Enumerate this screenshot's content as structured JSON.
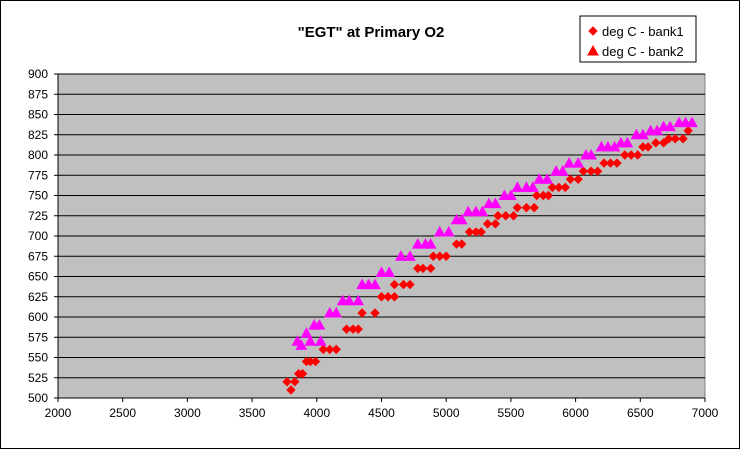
{
  "chart_data": {
    "type": "scatter",
    "title": "\"EGT\" at Primary O2",
    "xlabel": "",
    "ylabel": "",
    "xlim": [
      2000,
      7000
    ],
    "ylim": [
      500,
      900
    ],
    "x_ticks": [
      "2000",
      "2500",
      "3000",
      "3500",
      "4000",
      "4500",
      "5000",
      "5500",
      "6000",
      "6500",
      "7000"
    ],
    "y_ticks": [
      "500",
      "525",
      "550",
      "575",
      "600",
      "625",
      "650",
      "675",
      "700",
      "725",
      "750",
      "775",
      "800",
      "825",
      "850",
      "875",
      "900"
    ],
    "grid": true,
    "plot_background": "#C0C0C0",
    "legend": {
      "placement": "top-right",
      "entries": [
        "deg C - bank1",
        "deg C - bank2"
      ]
    },
    "series": [
      {
        "name": "deg C - bank1",
        "marker": "diamond",
        "color": "#FF0000",
        "points": [
          [
            3770,
            520
          ],
          [
            3800,
            510
          ],
          [
            3830,
            520
          ],
          [
            3860,
            530
          ],
          [
            3890,
            530
          ],
          [
            3920,
            545
          ],
          [
            3950,
            545
          ],
          [
            3990,
            545
          ],
          [
            4050,
            560
          ],
          [
            4100,
            560
          ],
          [
            4150,
            560
          ],
          [
            4230,
            585
          ],
          [
            4280,
            585
          ],
          [
            4320,
            585
          ],
          [
            4350,
            605
          ],
          [
            4450,
            605
          ],
          [
            4500,
            625
          ],
          [
            4550,
            625
          ],
          [
            4600,
            625
          ],
          [
            4600,
            640
          ],
          [
            4670,
            640
          ],
          [
            4720,
            640
          ],
          [
            4780,
            660
          ],
          [
            4820,
            660
          ],
          [
            4880,
            660
          ],
          [
            4900,
            675
          ],
          [
            4950,
            675
          ],
          [
            5000,
            675
          ],
          [
            5080,
            690
          ],
          [
            5120,
            690
          ],
          [
            5180,
            705
          ],
          [
            5230,
            705
          ],
          [
            5270,
            705
          ],
          [
            5320,
            715
          ],
          [
            5380,
            715
          ],
          [
            5400,
            725
          ],
          [
            5460,
            725
          ],
          [
            5520,
            725
          ],
          [
            5550,
            735
          ],
          [
            5620,
            735
          ],
          [
            5680,
            735
          ],
          [
            5700,
            750
          ],
          [
            5750,
            750
          ],
          [
            5790,
            750
          ],
          [
            5820,
            760
          ],
          [
            5870,
            760
          ],
          [
            5920,
            760
          ],
          [
            5960,
            770
          ],
          [
            6020,
            770
          ],
          [
            6060,
            780
          ],
          [
            6120,
            780
          ],
          [
            6170,
            780
          ],
          [
            6220,
            790
          ],
          [
            6270,
            790
          ],
          [
            6320,
            790
          ],
          [
            6380,
            800
          ],
          [
            6430,
            800
          ],
          [
            6480,
            800
          ],
          [
            6520,
            810
          ],
          [
            6560,
            810
          ],
          [
            6620,
            815
          ],
          [
            6680,
            815
          ],
          [
            6720,
            820
          ],
          [
            6770,
            820
          ],
          [
            6830,
            820
          ],
          [
            6870,
            830
          ]
        ]
      },
      {
        "name": "deg C - bank2",
        "marker": "triangle",
        "color": "#FF00FF",
        "points": [
          [
            3850,
            570
          ],
          [
            3880,
            565
          ],
          [
            3920,
            580
          ],
          [
            3950,
            570
          ],
          [
            3980,
            590
          ],
          [
            4020,
            590
          ],
          [
            4030,
            570
          ],
          [
            4100,
            605
          ],
          [
            4150,
            605
          ],
          [
            4200,
            620
          ],
          [
            4250,
            620
          ],
          [
            4320,
            620
          ],
          [
            4350,
            640
          ],
          [
            4400,
            640
          ],
          [
            4450,
            640
          ],
          [
            4500,
            655
          ],
          [
            4560,
            655
          ],
          [
            4650,
            675
          ],
          [
            4720,
            675
          ],
          [
            4780,
            690
          ],
          [
            4840,
            690
          ],
          [
            4880,
            690
          ],
          [
            4950,
            705
          ],
          [
            5020,
            705
          ],
          [
            5080,
            720
          ],
          [
            5120,
            720
          ],
          [
            5170,
            730
          ],
          [
            5230,
            730
          ],
          [
            5280,
            730
          ],
          [
            5330,
            740
          ],
          [
            5380,
            740
          ],
          [
            5450,
            750
          ],
          [
            5500,
            750
          ],
          [
            5550,
            760
          ],
          [
            5620,
            760
          ],
          [
            5670,
            760
          ],
          [
            5720,
            770
          ],
          [
            5780,
            770
          ],
          [
            5850,
            780
          ],
          [
            5900,
            780
          ],
          [
            5950,
            790
          ],
          [
            6020,
            790
          ],
          [
            6080,
            800
          ],
          [
            6120,
            800
          ],
          [
            6200,
            810
          ],
          [
            6250,
            810
          ],
          [
            6300,
            810
          ],
          [
            6350,
            815
          ],
          [
            6400,
            815
          ],
          [
            6470,
            825
          ],
          [
            6520,
            825
          ],
          [
            6580,
            830
          ],
          [
            6630,
            830
          ],
          [
            6680,
            835
          ],
          [
            6730,
            835
          ],
          [
            6800,
            840
          ],
          [
            6850,
            840
          ],
          [
            6900,
            840
          ]
        ]
      }
    ]
  }
}
